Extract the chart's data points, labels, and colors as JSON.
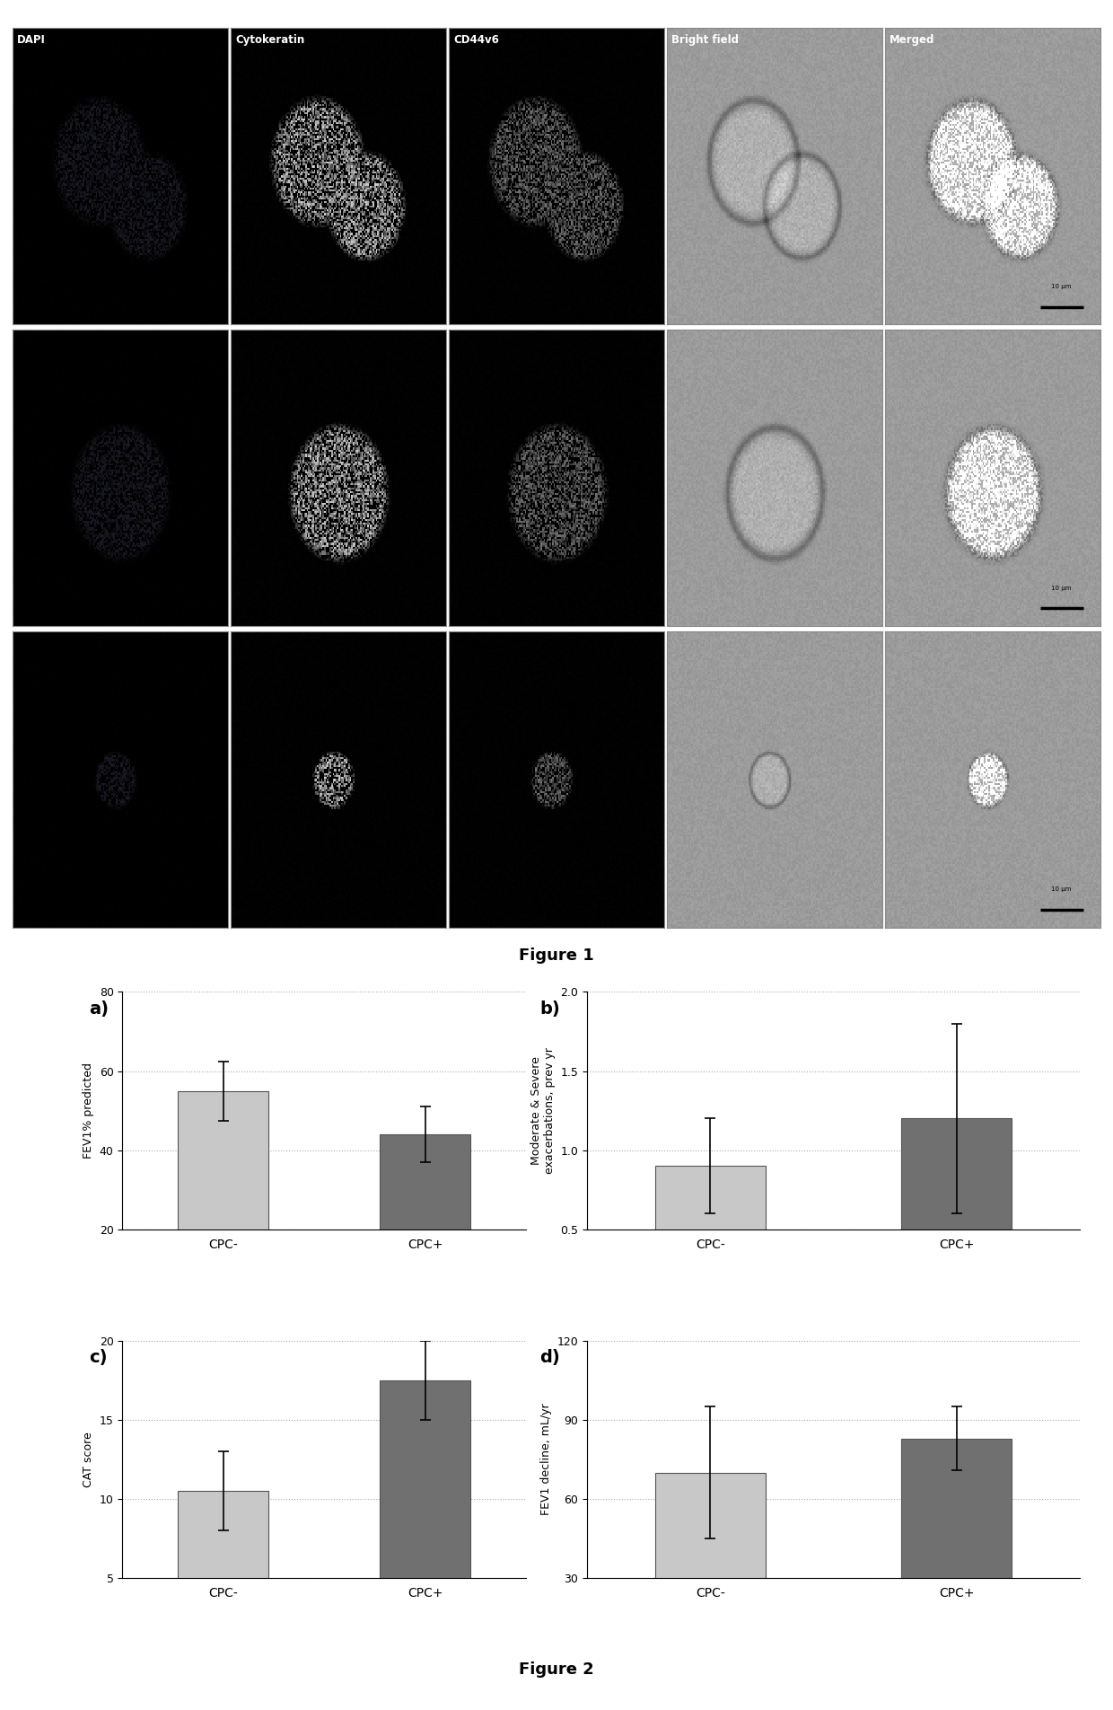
{
  "figure1_rows": 3,
  "figure1_cols": 5,
  "panel_labels_row1": [
    "DAPI",
    "Cytokeratin",
    "CD44v6",
    "Bright field",
    "Merged"
  ],
  "fig1_caption": "Figure 1",
  "fig2_caption": "Figure 2",
  "panel_letters": [
    "a)",
    "b)",
    "c)",
    "d)"
  ],
  "categories": [
    "CPC-",
    "CPC+"
  ],
  "bar_color_light": "#c8c8c8",
  "bar_color_dark": "#707070",
  "bar_width": 0.45,
  "charts": [
    {
      "ylabel": "FEV1% predicted",
      "values": [
        55.0,
        44.0
      ],
      "errors": [
        7.5,
        7.0
      ],
      "ylim": [
        20,
        80
      ],
      "yticks": [
        20,
        40,
        60,
        80
      ]
    },
    {
      "ylabel": "Moderate & Severe\nexacerbations, prev yr",
      "values": [
        0.9,
        1.2
      ],
      "errors": [
        0.3,
        0.6
      ],
      "ylim": [
        0.5,
        2.0
      ],
      "yticks": [
        0.5,
        1.0,
        1.5,
        2.0
      ]
    },
    {
      "ylabel": "CAT score",
      "values": [
        10.5,
        17.5
      ],
      "errors": [
        2.5,
        2.5
      ],
      "ylim": [
        5,
        20
      ],
      "yticks": [
        5,
        10,
        15,
        20
      ]
    },
    {
      "ylabel": "FEV1 decline, mL/yr",
      "values": [
        70.0,
        83.0
      ],
      "errors": [
        25.0,
        12.0
      ],
      "ylim": [
        30,
        120
      ],
      "yticks": [
        30,
        60,
        90,
        120
      ]
    }
  ],
  "grid_color": "#aaaaaa",
  "grid_linestyle": ":",
  "grid_linewidth": 0.8,
  "background_color": "#ffffff",
  "error_capsize": 4,
  "error_linewidth": 1.2
}
